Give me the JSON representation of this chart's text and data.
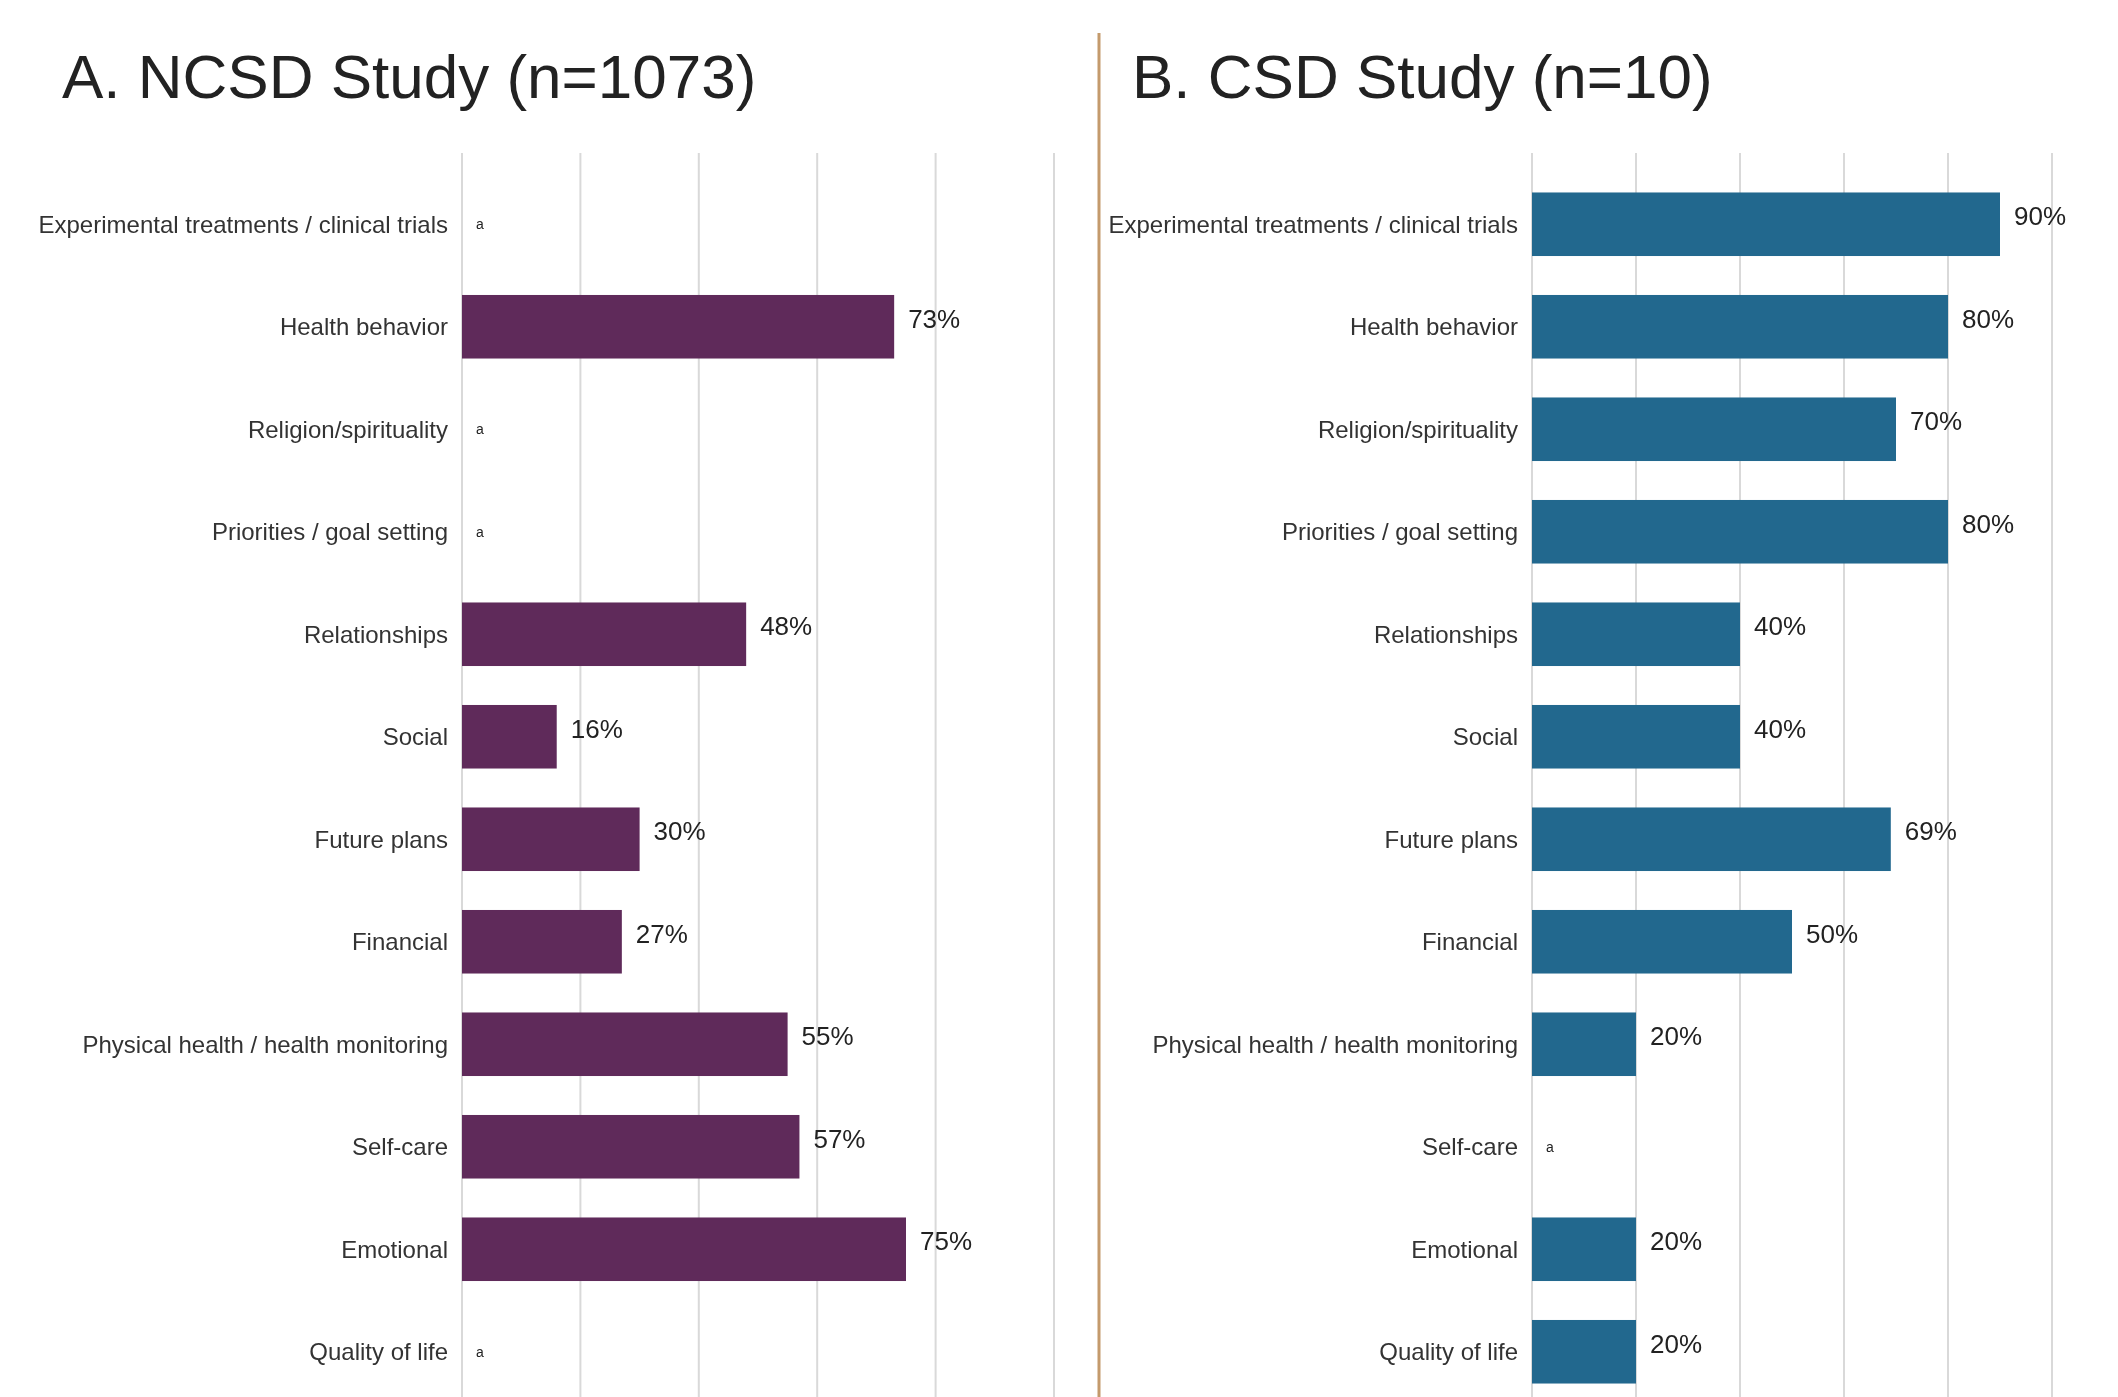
{
  "chart_data": [
    {
      "type": "bar",
      "orientation": "horizontal",
      "title": "A. NCSD Study (n=1073)",
      "categories": [
        "Experimental treatments / clinical trials",
        "Health behavior",
        "Religion/spirituality",
        "Priorities / goal setting",
        "Relationships",
        "Social",
        "Future plans",
        "Financial",
        "Physical health / health monitoring",
        "Self-care",
        "Emotional",
        "Quality of life"
      ],
      "values": [
        null,
        73,
        null,
        null,
        48,
        16,
        30,
        27,
        55,
        57,
        75,
        null
      ],
      "value_labels": [
        "a",
        "73%",
        "a",
        "a",
        "48%",
        "16%",
        "30%",
        "27%",
        "55%",
        "57%",
        "75%",
        "a"
      ],
      "color": "#5f2a5a",
      "xlim": [
        0,
        100
      ],
      "xticks": [
        {
          "value": 0,
          "label": null
        },
        {
          "value": 20,
          "label": null
        },
        {
          "value": 40,
          "label": null
        },
        {
          "value": 60,
          "label": null
        },
        {
          "value": 80,
          "label": null
        },
        {
          "value": 100,
          "label": null
        }
      ],
      "grid": "x"
    },
    {
      "type": "bar",
      "orientation": "horizontal",
      "title": "B. CSD Study (n=10)",
      "categories": [
        "Experimental treatments / clinical trials",
        "Health behavior",
        "Religion/spirituality",
        "Priorities / goal setting",
        "Relationships",
        "Social",
        "Future plans",
        "Financial",
        "Physical health / health monitoring",
        "Self-care",
        "Emotional",
        "Quality of life"
      ],
      "values": [
        90,
        80,
        70,
        80,
        40,
        40,
        69,
        50,
        20,
        null,
        20,
        20
      ],
      "value_labels": [
        "90%",
        "80%",
        "70%",
        "80%",
        "40%",
        "40%",
        "69%",
        "50%",
        "20%",
        "a",
        "20%",
        "20%"
      ],
      "color": "#22688e",
      "xlim": [
        0,
        100
      ],
      "xticks": [
        {
          "value": 0,
          "label": null
        },
        {
          "value": 20,
          "label": null
        },
        {
          "value": 40,
          "label": null
        },
        {
          "value": 60,
          "label": null
        },
        {
          "value": 80,
          "label": null
        },
        {
          "value": 100,
          "label": null
        }
      ],
      "grid": "x"
    }
  ]
}
